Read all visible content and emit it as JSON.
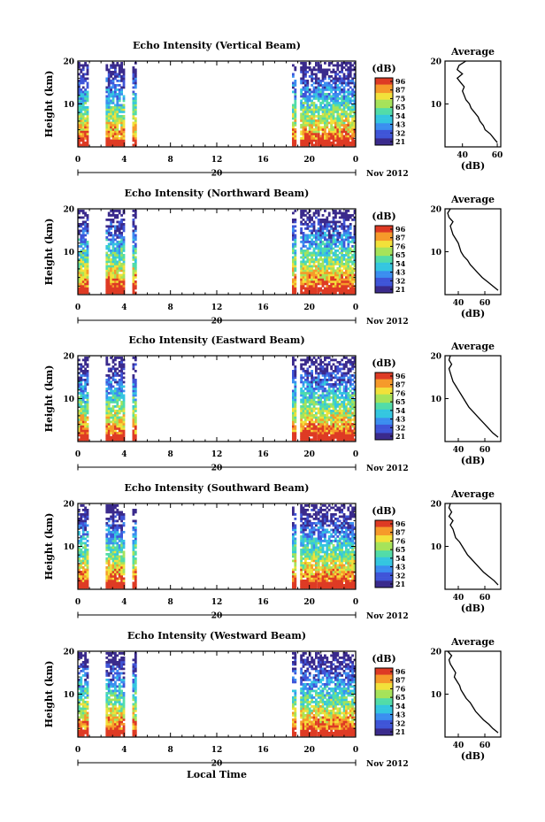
{
  "chart_data": [
    {
      "type": "heatmap",
      "title": "Echo Intensity (Vertical Beam)",
      "ylabel": "Height (km)",
      "xlabel": "",
      "xlim": [
        0,
        24
      ],
      "ylim": [
        0,
        20
      ],
      "xticks": [
        "0",
        "4",
        "8",
        "12",
        "16",
        "20",
        "0"
      ],
      "yticks": [
        "20",
        "10"
      ],
      "date_label": "20",
      "month_label": "Nov 2012",
      "colorbar": {
        "title": "(dB)",
        "ticks": [
          "96",
          "87",
          "75",
          "65",
          "54",
          "43",
          "32",
          "21"
        ]
      },
      "data_time_intervals": [
        [
          0,
          0.8
        ],
        [
          2.4,
          4.0
        ],
        [
          4.7,
          4.9
        ],
        [
          18.5,
          18.7
        ],
        [
          19.2,
          20.5
        ],
        [
          20.7,
          23.9
        ]
      ],
      "average_profile": {
        "title": "Average",
        "xlabel": "(dB)",
        "xticks": [
          "40",
          "60"
        ],
        "yticks": [
          "20",
          "10"
        ],
        "xlim": [
          30,
          62
        ],
        "height_km": [
          1,
          2,
          3,
          4,
          5,
          6,
          7,
          8,
          9,
          10,
          11,
          12,
          13,
          14,
          15,
          16,
          17,
          18,
          19,
          20
        ],
        "db": [
          60,
          58,
          56,
          53,
          52,
          50,
          49,
          47,
          45,
          44,
          42,
          41,
          40,
          41,
          39,
          37,
          40,
          37,
          38,
          42
        ]
      }
    },
    {
      "type": "heatmap",
      "title": "Echo Intensity (Northward Beam)",
      "ylabel": "Height (km)",
      "xlabel": "",
      "xlim": [
        0,
        24
      ],
      "ylim": [
        0,
        20
      ],
      "xticks": [
        "0",
        "4",
        "8",
        "12",
        "16",
        "20",
        "0"
      ],
      "yticks": [
        "20",
        "10"
      ],
      "date_label": "20",
      "month_label": "Nov 2012",
      "colorbar": {
        "title": "(dB)",
        "ticks": [
          "96",
          "87",
          "76",
          "65",
          "54",
          "43",
          "32",
          "21"
        ]
      },
      "data_time_intervals": [
        [
          0,
          0.8
        ],
        [
          2.4,
          4.0
        ],
        [
          4.7,
          4.9
        ],
        [
          18.5,
          18.7
        ],
        [
          19.2,
          20.5
        ],
        [
          20.7,
          23.9
        ]
      ],
      "average_profile": {
        "title": "Average",
        "xlabel": "(dB)",
        "xticks": [
          "40",
          "60"
        ],
        "yticks": [
          "20",
          "10"
        ],
        "xlim": [
          30,
          72
        ],
        "height_km": [
          1,
          2,
          3,
          4,
          5,
          6,
          7,
          8,
          9,
          10,
          11,
          12,
          13,
          14,
          15,
          16,
          17,
          18,
          19,
          20
        ],
        "db": [
          70,
          66,
          62,
          58,
          55,
          52,
          49,
          47,
          44,
          42,
          41,
          40,
          38,
          36,
          35,
          34,
          36,
          33,
          32,
          34
        ]
      }
    },
    {
      "type": "heatmap",
      "title": "Echo Intensity (Eastward Beam)",
      "ylabel": "Height (km)",
      "xlabel": "",
      "xlim": [
        0,
        24
      ],
      "ylim": [
        0,
        20
      ],
      "xticks": [
        "0",
        "4",
        "8",
        "12",
        "16",
        "20",
        "0"
      ],
      "yticks": [
        "20",
        "10"
      ],
      "date_label": "20",
      "month_label": "Nov 2012",
      "colorbar": {
        "title": "(dB)",
        "ticks": [
          "96",
          "87",
          "76",
          "65",
          "54",
          "43",
          "32",
          "21"
        ]
      },
      "data_time_intervals": [
        [
          0,
          0.8
        ],
        [
          2.4,
          4.0
        ],
        [
          4.7,
          4.9
        ],
        [
          18.5,
          18.7
        ],
        [
          19.2,
          20.5
        ],
        [
          20.7,
          23.9
        ]
      ],
      "average_profile": {
        "title": "Average",
        "xlabel": "(dB)",
        "xticks": [
          "40",
          "60"
        ],
        "yticks": [
          "20",
          "10"
        ],
        "xlim": [
          30,
          72
        ],
        "height_km": [
          1,
          2,
          3,
          4,
          5,
          6,
          7,
          8,
          9,
          10,
          11,
          12,
          13,
          14,
          15,
          16,
          17,
          18,
          19,
          20
        ],
        "db": [
          70,
          66,
          63,
          60,
          57,
          54,
          51,
          48,
          46,
          44,
          42,
          40,
          38,
          36,
          35,
          34,
          33,
          35,
          33,
          34
        ]
      }
    },
    {
      "type": "heatmap",
      "title": "Echo Intensity (Southward Beam)",
      "ylabel": "Height (km)",
      "xlabel": "",
      "xlim": [
        0,
        24
      ],
      "ylim": [
        0,
        20
      ],
      "xticks": [
        "0",
        "4",
        "8",
        "12",
        "16",
        "20",
        "0"
      ],
      "yticks": [
        "20",
        "10"
      ],
      "date_label": "20",
      "month_label": "Nov 2012",
      "colorbar": {
        "title": "(dB)",
        "ticks": [
          "96",
          "87",
          "76",
          "65",
          "54",
          "43",
          "32",
          "21"
        ]
      },
      "data_time_intervals": [
        [
          0,
          0.8
        ],
        [
          2.4,
          4.0
        ],
        [
          4.7,
          4.9
        ],
        [
          18.5,
          18.7
        ],
        [
          19.2,
          20.5
        ],
        [
          20.7,
          23.9
        ]
      ],
      "average_profile": {
        "title": "Average",
        "xlabel": "(dB)",
        "xticks": [
          "40",
          "60"
        ],
        "yticks": [
          "20",
          "10"
        ],
        "xlim": [
          30,
          72
        ],
        "height_km": [
          1,
          2,
          3,
          4,
          5,
          6,
          7,
          8,
          9,
          10,
          11,
          12,
          13,
          14,
          15,
          16,
          17,
          18,
          19,
          20
        ],
        "db": [
          70,
          67,
          63,
          59,
          56,
          53,
          50,
          47,
          45,
          43,
          41,
          38,
          37,
          36,
          34,
          36,
          33,
          35,
          33,
          34
        ]
      }
    },
    {
      "type": "heatmap",
      "title": "Echo Intensity (Westward Beam)",
      "ylabel": "Height (km)",
      "xlabel": "Local Time",
      "xlim": [
        0,
        24
      ],
      "ylim": [
        0,
        20
      ],
      "xticks": [
        "0",
        "4",
        "8",
        "12",
        "16",
        "20",
        "0"
      ],
      "yticks": [
        "20",
        "10"
      ],
      "date_label": "20",
      "month_label": "Nov 2012",
      "colorbar": {
        "title": "(dB)",
        "ticks": [
          "96",
          "87",
          "76",
          "65",
          "54",
          "43",
          "32",
          "21"
        ]
      },
      "data_time_intervals": [
        [
          0,
          0.8
        ],
        [
          2.4,
          4.0
        ],
        [
          4.7,
          4.9
        ],
        [
          18.5,
          18.7
        ],
        [
          19.2,
          20.5
        ],
        [
          20.7,
          23.9
        ]
      ],
      "average_profile": {
        "title": "Average",
        "xlabel": "(dB)",
        "xticks": [
          "40",
          "60"
        ],
        "yticks": [
          "20",
          "10"
        ],
        "xlim": [
          30,
          72
        ],
        "height_km": [
          1,
          2,
          3,
          4,
          5,
          6,
          7,
          8,
          9,
          10,
          11,
          12,
          13,
          14,
          15,
          16,
          17,
          18,
          19,
          20
        ],
        "db": [
          70,
          66,
          63,
          59,
          56,
          53,
          51,
          49,
          46,
          44,
          42,
          41,
          39,
          37,
          38,
          36,
          34,
          33,
          35,
          32
        ]
      }
    }
  ],
  "colors": {
    "colormap": [
      "#3a2a8c",
      "#3f55d8",
      "#3b8ef0",
      "#34c6e0",
      "#52dca8",
      "#a6e35a",
      "#f2e13a",
      "#f69a2a",
      "#de3b24"
    ]
  }
}
